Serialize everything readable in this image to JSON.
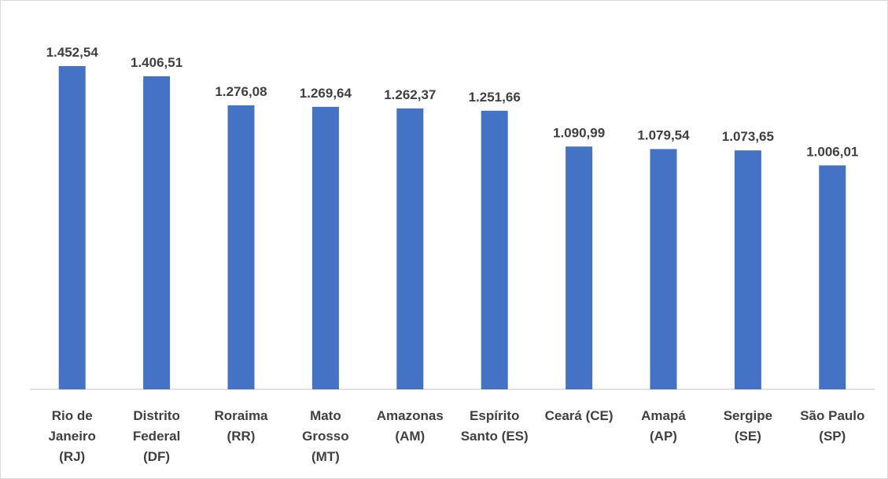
{
  "chart_data": {
    "type": "bar",
    "categories": [
      [
        "Rio de",
        "Janeiro",
        "(RJ)"
      ],
      [
        "Distrito",
        "Federal",
        "(DF)"
      ],
      [
        "Roraima",
        "(RR)"
      ],
      [
        "Mato",
        "Grosso",
        "(MT)"
      ],
      [
        "Amazonas",
        "(AM)"
      ],
      [
        "Espírito",
        "Santo (ES)"
      ],
      [
        "Ceará (CE)"
      ],
      [
        "Amapá",
        "(AP)"
      ],
      [
        "Sergipe",
        "(SE)"
      ],
      [
        "São Paulo",
        "(SP)"
      ]
    ],
    "values": [
      1452.54,
      1406.51,
      1276.08,
      1269.64,
      1262.37,
      1251.66,
      1090.99,
      1079.54,
      1073.65,
      1006.01
    ],
    "data_labels": [
      "1.452,54",
      "1.406,51",
      "1.276,08",
      "1.269,64",
      "1.262,37",
      "1.251,66",
      "1.090,99",
      "1.079,54",
      "1.073,65",
      "1.006,01"
    ],
    "ylim": [
      0,
      1452.54
    ],
    "colors": {
      "bar": "#4472C4",
      "text": "#404040",
      "axis": "#d9d9d9"
    },
    "grid": false,
    "legend": "none"
  }
}
